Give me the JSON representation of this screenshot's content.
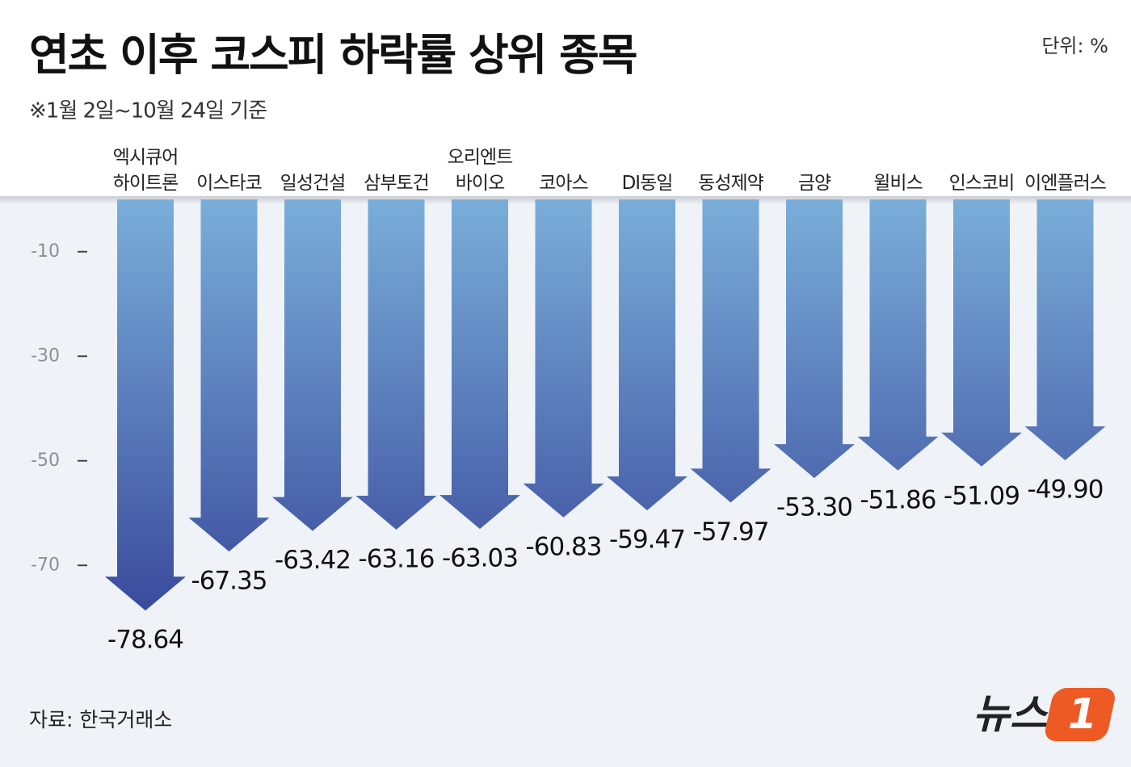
{
  "chart_data": {
    "type": "arrow-bar",
    "title": "연초 이후 코스피 하락률 상위 종목",
    "subtitle": "※1월 2일~10월 24일 기준",
    "unit": "단위: %",
    "source": "자료: 한국거래소",
    "logo": {
      "text": "뉴스",
      "number": "1"
    },
    "categories": [
      "엑시큐어\n하이트론",
      "이스타코",
      "일성건설",
      "삼부토건",
      "오리엔트\n바이오",
      "코아스",
      "DI동일",
      "동성제약",
      "금양",
      "윌비스",
      "인스코비",
      "이엔플러스"
    ],
    "values": [
      -78.64,
      -67.35,
      -63.42,
      -63.16,
      -63.03,
      -60.83,
      -59.47,
      -57.97,
      -53.3,
      -51.86,
      -51.09,
      -49.9
    ],
    "value_labels": [
      "-78.64",
      "-67.35",
      "-63.42",
      "-63.16",
      "-63.03",
      "-60.83",
      "-59.47",
      "-57.97",
      "-53.30",
      "-51.86",
      "-51.09",
      "-49.90"
    ],
    "color": [
      "#7aaed9",
      "#3a4a9c"
    ],
    "ylim": [
      -100,
      0
    ],
    "yticks": [
      -10,
      -30,
      -50,
      -70
    ]
  }
}
